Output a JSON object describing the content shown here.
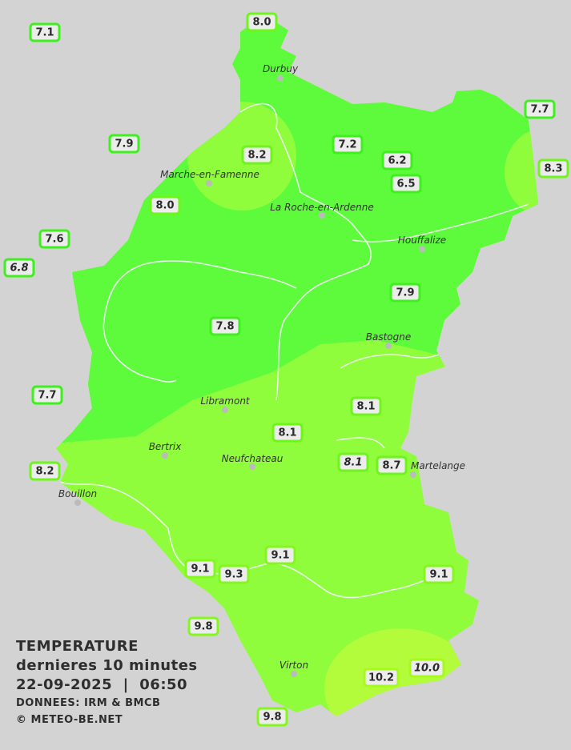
{
  "colors": {
    "background": "#d3d3d3",
    "zone_cool": "#5dfb3b",
    "zone_mild": "#8ffc3c",
    "zone_warm": "#b2fc3c",
    "river": "#e8f5e8",
    "label_fill": "#ececec"
  },
  "towns": [
    "Durbuy",
    "Marche-en-Famenne",
    "La Roche-en-Ardenne",
    "Houffalize",
    "Bastogne",
    "Libramont",
    "Bertrix",
    "Neufchateau",
    "Bouillon",
    "Virton",
    "Martelange"
  ],
  "stations": [
    {
      "value": "7.1",
      "italic": false
    },
    {
      "value": "8.0",
      "italic": false
    },
    {
      "value": "7.7",
      "italic": false
    },
    {
      "value": "7.9",
      "italic": false
    },
    {
      "value": "8.2",
      "italic": false
    },
    {
      "value": "7.2",
      "italic": false
    },
    {
      "value": "6.2",
      "italic": false
    },
    {
      "value": "8.3",
      "italic": false
    },
    {
      "value": "6.5",
      "italic": false
    },
    {
      "value": "8.0",
      "italic": false
    },
    {
      "value": "7.6",
      "italic": false
    },
    {
      "value": "6.8",
      "italic": true
    },
    {
      "value": "7.9",
      "italic": false
    },
    {
      "value": "7.8",
      "italic": false
    },
    {
      "value": "7.7",
      "italic": false
    },
    {
      "value": "8.1",
      "italic": false
    },
    {
      "value": "8.1",
      "italic": false
    },
    {
      "value": "8.1",
      "italic": true
    },
    {
      "value": "8.7",
      "italic": false
    },
    {
      "value": "8.2",
      "italic": false
    },
    {
      "value": "9.1",
      "italic": false
    },
    {
      "value": "9.1",
      "italic": false
    },
    {
      "value": "9.3",
      "italic": false
    },
    {
      "value": "9.1",
      "italic": false
    },
    {
      "value": "9.8",
      "italic": false
    },
    {
      "value": "10.2",
      "italic": false
    },
    {
      "value": "10.0",
      "italic": true
    },
    {
      "value": "9.8",
      "italic": false
    }
  ],
  "legend": {
    "title": "TEMPERATURE",
    "subtitle": "dernieres 10 minutes",
    "datetime": "22-09-2025  |  06:50",
    "source": "DONNEES: IRM & BMCB",
    "copyright": "© METEO-BE.NET"
  }
}
